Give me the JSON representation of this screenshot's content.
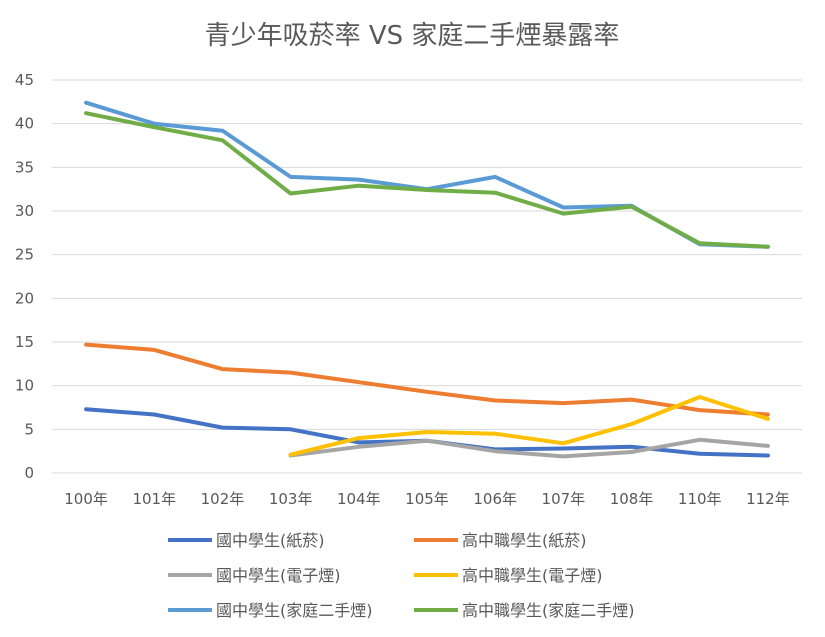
{
  "chart_data": {
    "type": "line",
    "title": "青少年吸菸率 VS 家庭二手煙暴露率",
    "xlabel": "",
    "ylabel": "",
    "categories": [
      "100年",
      "101年",
      "102年",
      "103年",
      "104年",
      "105年",
      "106年",
      "107年",
      "108年",
      "110年",
      "112年"
    ],
    "ylim": [
      0,
      45
    ],
    "yticks": [
      0,
      5,
      10,
      15,
      20,
      25,
      30,
      35,
      40,
      45
    ],
    "grid": true,
    "legend_position": "bottom",
    "series": [
      {
        "name": "國中學生(紙菸)",
        "color": "#4472C4",
        "values": [
          7.3,
          6.7,
          5.2,
          5.0,
          3.5,
          3.7,
          2.7,
          2.8,
          3.0,
          2.2,
          2.0
        ]
      },
      {
        "name": "高中職學生(紙菸)",
        "color": "#ED7D31",
        "values": [
          14.7,
          14.1,
          11.9,
          11.5,
          10.4,
          9.3,
          8.3,
          8.0,
          8.4,
          7.2,
          6.7
        ]
      },
      {
        "name": "國中學生(電子煙)",
        "color": "#A5A5A5",
        "values": [
          null,
          null,
          null,
          2.0,
          3.0,
          3.7,
          2.5,
          1.9,
          2.4,
          3.8,
          3.1
        ]
      },
      {
        "name": "高中職學生(電子煙)",
        "color": "#FFC000",
        "values": [
          null,
          null,
          null,
          2.1,
          4.0,
          4.7,
          4.5,
          3.4,
          5.6,
          8.7,
          6.2
        ]
      },
      {
        "name": "國中學生(家庭二手煙)",
        "color": "#5B9BD5",
        "values": [
          42.4,
          40.0,
          39.2,
          33.9,
          33.6,
          32.5,
          33.9,
          30.4,
          30.6,
          26.2,
          25.9
        ]
      },
      {
        "name": "高中職學生(家庭二手煙)",
        "color": "#70AD47",
        "values": [
          41.2,
          39.6,
          38.1,
          32.0,
          32.9,
          32.4,
          32.1,
          29.7,
          30.5,
          26.3,
          25.9
        ]
      }
    ]
  }
}
